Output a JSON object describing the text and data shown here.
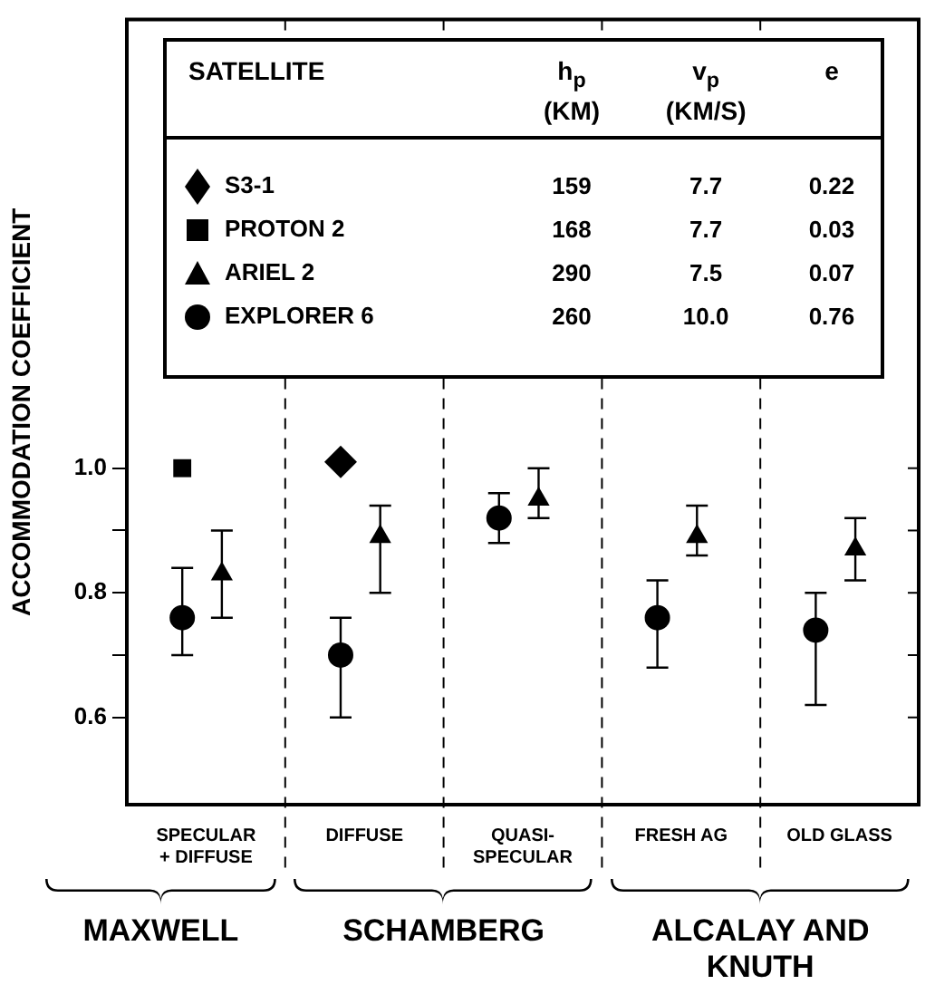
{
  "chart_data": {
    "type": "scatter",
    "ylabel": "ACCOMMODATION COEFFICIENT",
    "legend_title": "SATELLITE",
    "legend": "top",
    "categories": [
      "SPECULAR + DIFFUSE",
      "DIFFUSE",
      "QUASI-SPECULAR",
      "FRESH AG",
      "OLD GLASS"
    ],
    "ylim": [
      0.46,
      1.72
    ],
    "yticks": [
      0.6,
      {
        "value": 0.7,
        "label": null
      },
      0.8,
      {
        "value": 0.9,
        "label": null
      },
      {
        "value": 1.0,
        "label": "1.0"
      }
    ],
    "series": [
      {
        "name": "S3-1",
        "color": "#000000",
        "marker": "diamond",
        "values": [
          null,
          1.01,
          null,
          null,
          null
        ]
      },
      {
        "name": "PROTON 2",
        "color": "#000000",
        "marker": "square",
        "values": [
          1.0,
          null,
          null,
          null,
          null
        ]
      },
      {
        "name": "ARIEL 2",
        "color": "#000000",
        "marker": "triangle",
        "values": [
          0.83,
          0.89,
          0.95,
          0.89,
          0.87
        ],
        "errors": [
          [
            0.76,
            0.9
          ],
          [
            0.8,
            0.94
          ],
          [
            0.92,
            1.0
          ],
          [
            0.86,
            0.94
          ],
          [
            0.82,
            0.92
          ]
        ]
      },
      {
        "name": "EXPLORER 6",
        "color": "#000000",
        "marker": "circle",
        "values": [
          0.76,
          0.7,
          0.92,
          0.76,
          0.74
        ],
        "errors": [
          [
            0.7,
            0.84
          ],
          [
            0.6,
            0.76
          ],
          [
            0.88,
            0.96
          ],
          [
            0.68,
            0.82
          ],
          [
            0.62,
            0.8
          ]
        ]
      }
    ],
    "annotations": [
      "h$_{p}$ (KM)",
      "v$_{p}$ (KM/S)",
      "e",
      "159",
      "7.7",
      "0.22",
      "168",
      "7.7",
      "0.03",
      "290",
      "7.5",
      "0.07",
      "260",
      "10.0",
      "0.76",
      "MAXWELL",
      "SCHAMBERG",
      "ALCALAY AND KNUTH"
    ]
  }
}
